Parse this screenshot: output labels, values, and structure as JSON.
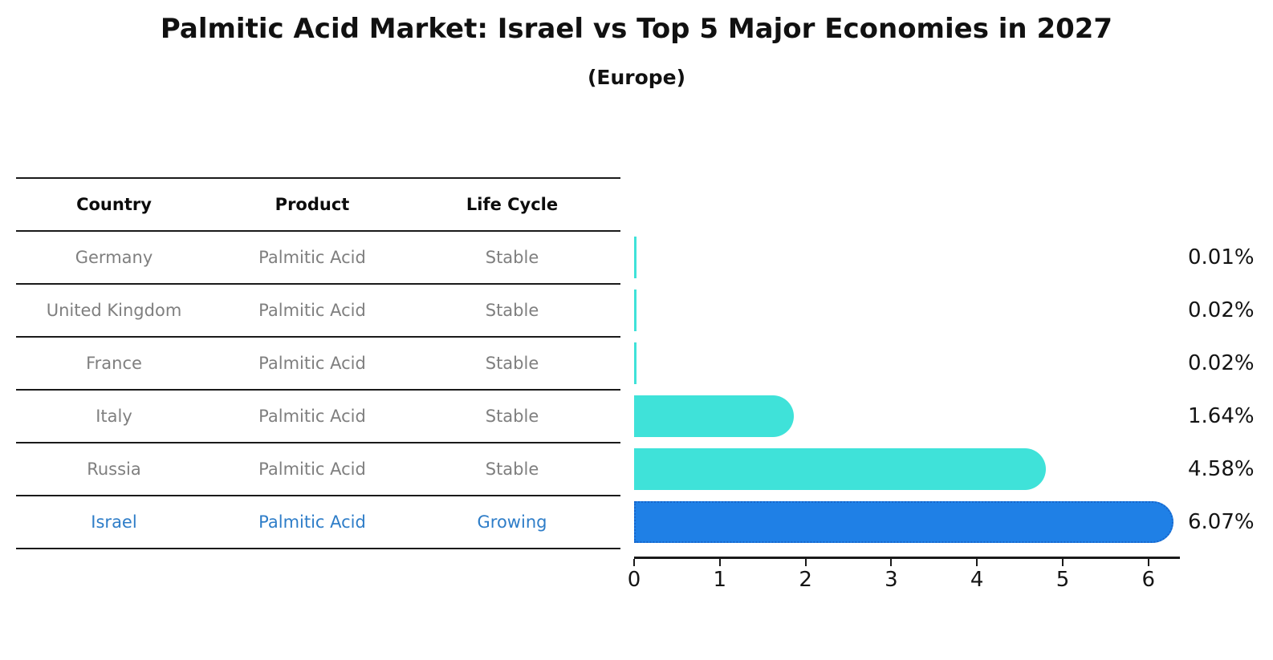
{
  "title": "Palmitic Acid Market: Israel vs Top 5 Major Economies in 2027",
  "subtitle": "(Europe)",
  "table": {
    "headers": [
      "Country",
      "Product",
      "Life Cycle"
    ],
    "rows": [
      {
        "country": "Germany",
        "product": "Palmitic Acid",
        "life_cycle": "Stable",
        "highlight": false
      },
      {
        "country": "United Kingdom",
        "product": "Palmitic Acid",
        "life_cycle": "Stable",
        "highlight": false
      },
      {
        "country": "France",
        "product": "Palmitic Acid",
        "life_cycle": "Stable",
        "highlight": false
      },
      {
        "country": "Italy",
        "product": "Palmitic Acid",
        "life_cycle": "Stable",
        "highlight": false
      },
      {
        "country": "Russia",
        "product": "Palmitic Acid",
        "life_cycle": "Stable",
        "highlight": false
      },
      {
        "country": "Israel",
        "product": "Palmitic Acid",
        "life_cycle": "Growing",
        "highlight": true
      }
    ]
  },
  "chart_data": {
    "type": "bar",
    "orientation": "horizontal",
    "title": "Palmitic Acid Market: Israel vs Top 5 Major Economies in 2027",
    "subtitle": "(Europe)",
    "categories": [
      "Germany",
      "United Kingdom",
      "France",
      "Italy",
      "Russia",
      "Israel"
    ],
    "values": [
      0.01,
      0.02,
      0.02,
      1.64,
      4.58,
      6.07
    ],
    "value_labels": [
      "0.01%",
      "0.02%",
      "0.02%",
      "1.64%",
      "4.58%",
      "6.07%"
    ],
    "xlabel": "",
    "ylabel": "",
    "xlim": [
      0,
      6.37
    ],
    "xticks": [
      0,
      1,
      2,
      3,
      4,
      5,
      6
    ],
    "grid": false,
    "legend": false,
    "highlight_index": 5
  },
  "colors": {
    "bar_default": "#3FE2D9",
    "bar_highlight": "#1F80E6",
    "bar_highlight_border": "#1766CC",
    "table_text": "#7f7f7f",
    "highlight_text": "#2E7DC8",
    "heading_text": "#111111",
    "axis_line": "#1a1a1a"
  }
}
